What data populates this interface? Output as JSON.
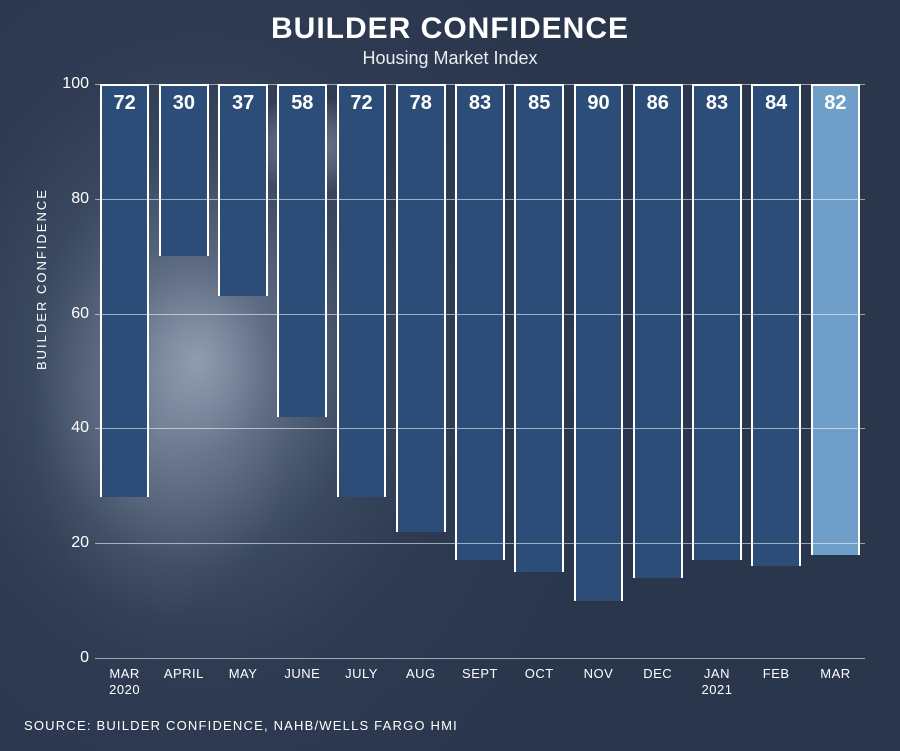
{
  "title": "BUILDER CONFIDENCE",
  "subtitle": "Housing Market Index",
  "y_axis_label": "BUILDER CONFIDENCE",
  "source_text": "SOURCE:  BUILDER CONFIDENCE, NAHB/WELLS FARGO HMI",
  "chart": {
    "type": "bar",
    "ylim": [
      0,
      100
    ],
    "ytick_step": 20,
    "yticks": [
      0,
      20,
      40,
      60,
      80,
      100
    ],
    "gridline_color": "rgba(255,255,255,0.55)",
    "bar_border_color": "#ffffff",
    "bar_border_width": 2,
    "value_label_color": "#ffffff",
    "value_label_fontsize": 20,
    "value_label_weight": 700,
    "xtick_fontsize": 13,
    "ytick_fontsize": 16,
    "title_fontsize": 30,
    "subtitle_fontsize": 18,
    "bar_width_ratio": 0.84,
    "default_bar_color": "#2b4d77",
    "highlight_bar_color": "#6f9fc8",
    "categories": [
      {
        "label": "MAR",
        "sublabel": "2020",
        "value": 72,
        "color": "#2b4d77"
      },
      {
        "label": "APRIL",
        "sublabel": "",
        "value": 30,
        "color": "#2b4d77"
      },
      {
        "label": "MAY",
        "sublabel": "",
        "value": 37,
        "color": "#2b4d77"
      },
      {
        "label": "JUNE",
        "sublabel": "",
        "value": 58,
        "color": "#2b4d77"
      },
      {
        "label": "JULY",
        "sublabel": "",
        "value": 72,
        "color": "#2b4d77"
      },
      {
        "label": "AUG",
        "sublabel": "",
        "value": 78,
        "color": "#2b4d77"
      },
      {
        "label": "SEPT",
        "sublabel": "",
        "value": 83,
        "color": "#2b4d77"
      },
      {
        "label": "OCT",
        "sublabel": "",
        "value": 85,
        "color": "#2b4d77"
      },
      {
        "label": "NOV",
        "sublabel": "",
        "value": 90,
        "color": "#2b4d77"
      },
      {
        "label": "DEC",
        "sublabel": "",
        "value": 86,
        "color": "#2b4d77"
      },
      {
        "label": "JAN",
        "sublabel": "2021",
        "value": 83,
        "color": "#2b4d77"
      },
      {
        "label": "FEB",
        "sublabel": "",
        "value": 84,
        "color": "#2b4d77"
      },
      {
        "label": "MAR",
        "sublabel": "",
        "value": 82,
        "color": "#6f9fc8"
      }
    ]
  },
  "background": {
    "base_gradient": "radial-gradient(ellipse 420px 520px at 22% 48%, #8a97ab 0%, #5c6a82 18%, #3a485f 40%, #2e3b52 60%, #2a364c 100%)",
    "note": "Original image has a monochrome photo of a builder in a hard hat as background; approximated with gradients."
  }
}
